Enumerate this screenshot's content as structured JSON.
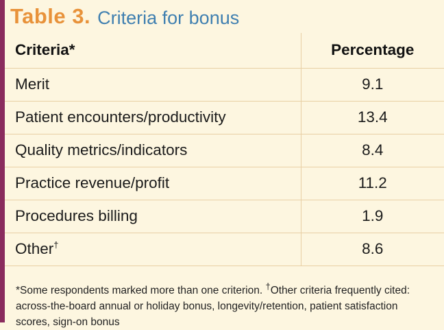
{
  "title": {
    "label": "Table 3.",
    "caption": "Criteria for bonus"
  },
  "table": {
    "headers": {
      "criteria": "Criteria*",
      "percentage": "Percentage"
    },
    "rows": [
      {
        "criteria": "Merit",
        "marker": "",
        "percentage": "9.1"
      },
      {
        "criteria": "Patient encounters/productivity",
        "marker": "",
        "percentage": "13.4"
      },
      {
        "criteria": "Quality metrics/indicators",
        "marker": "",
        "percentage": "8.4"
      },
      {
        "criteria": "Practice revenue/profit",
        "marker": "",
        "percentage": "11.2"
      },
      {
        "criteria": "Procedures billing",
        "marker": "",
        "percentage": "1.9"
      },
      {
        "criteria": "Other",
        "marker": "†",
        "percentage": "8.6"
      }
    ]
  },
  "footnotes": {
    "asterisk_note": "*Some respondents marked more than one criterion.",
    "dagger_mark": "†",
    "dagger_note": "Other criteria frequently cited: across-the-board annual or holiday bonus, longevity/retention, patient satisfaction scores, sign-on bonus"
  },
  "colors": {
    "accent_left_rule": "#8a2c5e",
    "title_label": "#e8923a",
    "title_caption": "#3f7fb0",
    "background": "#fdf6e0",
    "grid_line": "#e8cfa4"
  }
}
